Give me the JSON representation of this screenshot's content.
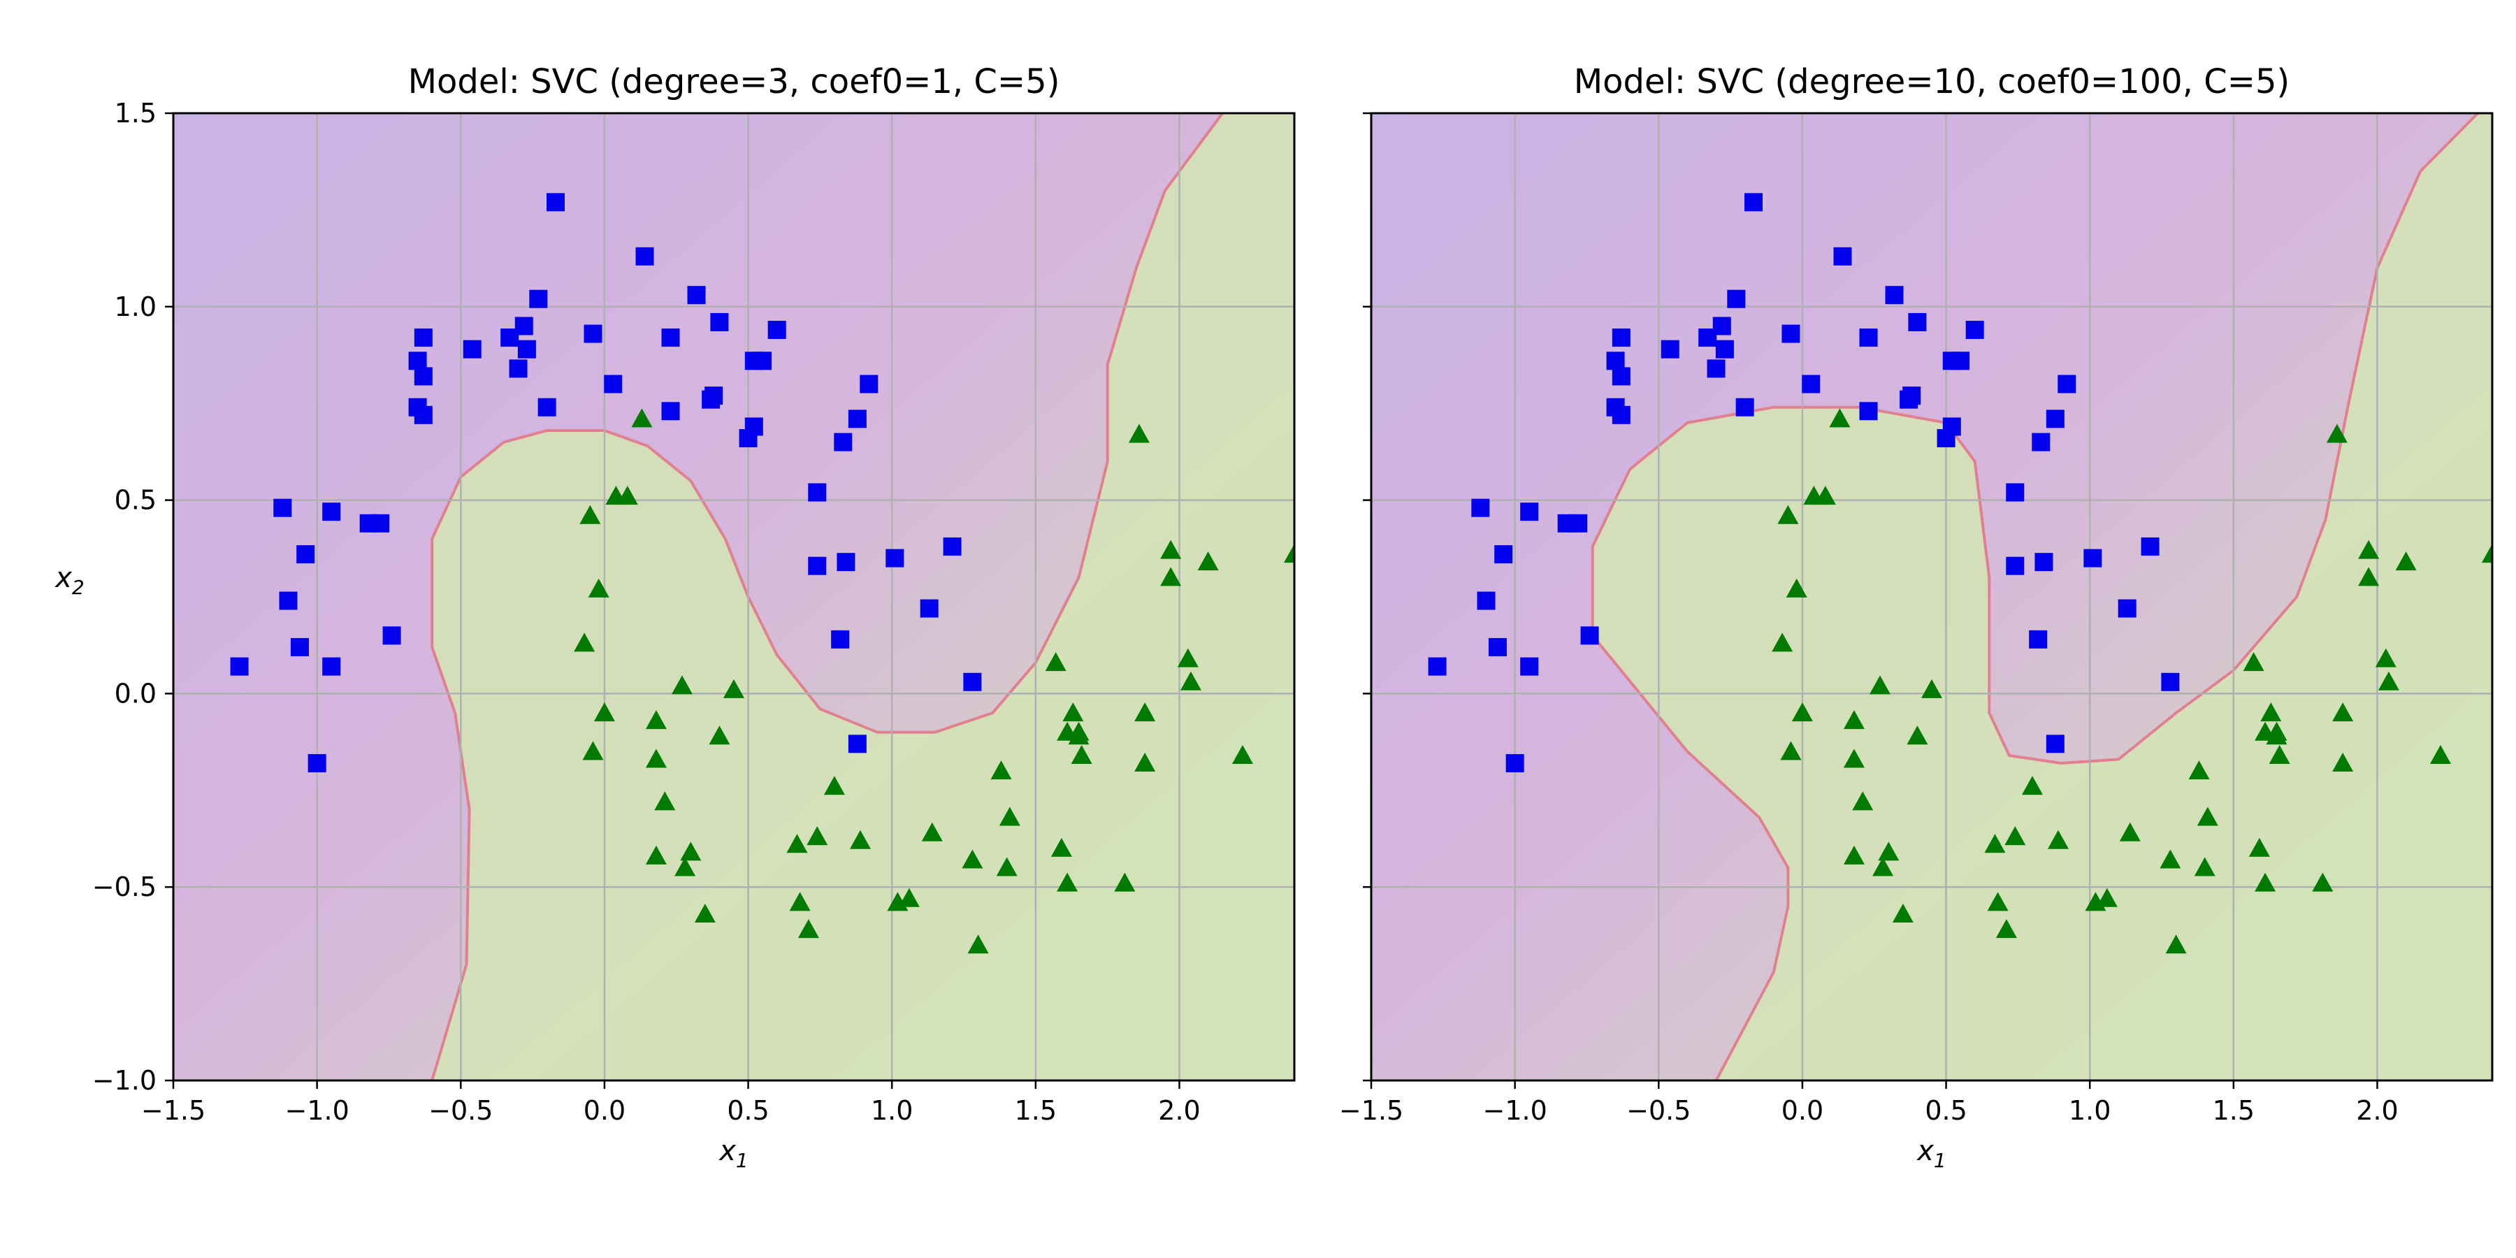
{
  "chart_data": [
    {
      "type": "scatter",
      "title": "Model: SVC  (degree=3, coef0=1, C=5)",
      "xlabel": "x",
      "xlabel_sub": "1",
      "ylabel": "x",
      "ylabel_sub": "2",
      "xlim": [
        -1.5,
        2.4
      ],
      "ylim": [
        -1.0,
        1.5
      ],
      "xticks": [
        -1.5,
        -1.0,
        -0.5,
        0.0,
        0.5,
        1.0,
        1.5,
        2.0
      ],
      "xtick_labels": [
        "−1.5",
        "−1.0",
        "−0.5",
        "0.0",
        "0.5",
        "1.0",
        "1.5",
        "2.0"
      ],
      "yticks": [
        -1.0,
        -0.5,
        0.0,
        0.5,
        1.0,
        1.5
      ],
      "ytick_labels": [
        "−1.0",
        "−0.5",
        "0.0",
        "0.5",
        "1.0",
        "1.5"
      ],
      "grid": true,
      "decision_boundary": {
        "class0_color": "#d8b4dc",
        "class1_color": "#d4e3b6",
        "boundary_color": "#e08090",
        "points": [
          [
            -0.6,
            -1.0
          ],
          [
            -0.48,
            -0.7
          ],
          [
            -0.47,
            -0.3
          ],
          [
            -0.52,
            -0.05
          ],
          [
            -0.6,
            0.12
          ],
          [
            -0.6,
            0.4
          ],
          [
            -0.5,
            0.56
          ],
          [
            -0.35,
            0.65
          ],
          [
            -0.2,
            0.68
          ],
          [
            0.0,
            0.68
          ],
          [
            0.15,
            0.64
          ],
          [
            0.3,
            0.55
          ],
          [
            0.42,
            0.4
          ],
          [
            0.5,
            0.25
          ],
          [
            0.6,
            0.1
          ],
          [
            0.75,
            -0.04
          ],
          [
            0.95,
            -0.1
          ],
          [
            1.15,
            -0.1
          ],
          [
            1.35,
            -0.05
          ],
          [
            1.5,
            0.08
          ],
          [
            1.65,
            0.3
          ],
          [
            1.75,
            0.6
          ],
          [
            1.75,
            0.85
          ],
          [
            1.85,
            1.1
          ],
          [
            1.95,
            1.3
          ],
          [
            2.15,
            1.5
          ]
        ],
        "class1_region_closing": [
          [
            2.4,
            1.5
          ],
          [
            2.4,
            -1.0
          ]
        ]
      },
      "series": [
        {
          "marker": "square",
          "color": "#0000ee",
          "points": [
            [
              -0.17,
              1.27
            ],
            [
              0.14,
              1.13
            ],
            [
              0.32,
              1.03
            ],
            [
              -0.23,
              1.02
            ],
            [
              0.4,
              0.96
            ],
            [
              -0.46,
              0.89
            ],
            [
              -0.33,
              0.92
            ],
            [
              -0.04,
              0.93
            ],
            [
              0.23,
              0.92
            ],
            [
              0.6,
              0.94
            ],
            [
              -0.63,
              0.92
            ],
            [
              -0.28,
              0.95
            ],
            [
              -0.27,
              0.89
            ],
            [
              0.52,
              0.86
            ],
            [
              0.55,
              0.86
            ],
            [
              -0.65,
              0.86
            ],
            [
              -0.63,
              0.82
            ],
            [
              -0.3,
              0.84
            ],
            [
              0.03,
              0.8
            ],
            [
              0.92,
              0.8
            ],
            [
              0.37,
              0.76
            ],
            [
              0.38,
              0.77
            ],
            [
              -0.2,
              0.74
            ],
            [
              0.23,
              0.73
            ],
            [
              -0.65,
              0.74
            ],
            [
              -0.63,
              0.72
            ],
            [
              0.88,
              0.71
            ],
            [
              0.52,
              0.69
            ],
            [
              0.5,
              0.66
            ],
            [
              0.83,
              0.65
            ],
            [
              0.74,
              0.52
            ],
            [
              -1.12,
              0.48
            ],
            [
              -0.95,
              0.47
            ],
            [
              -0.82,
              0.44
            ],
            [
              -0.78,
              0.44
            ],
            [
              1.21,
              0.38
            ],
            [
              -1.04,
              0.36
            ],
            [
              1.01,
              0.35
            ],
            [
              0.84,
              0.34
            ],
            [
              0.74,
              0.33
            ],
            [
              -1.1,
              0.24
            ],
            [
              1.13,
              0.22
            ],
            [
              -0.74,
              0.15
            ],
            [
              0.82,
              0.14
            ],
            [
              -1.06,
              0.12
            ],
            [
              -0.95,
              0.07
            ],
            [
              -1.27,
              0.07
            ],
            [
              1.28,
              0.03
            ],
            [
              0.88,
              -0.13
            ],
            [
              -1.0,
              -0.18
            ]
          ]
        },
        {
          "marker": "triangle",
          "color": "#007a00",
          "points": [
            [
              1.86,
              0.67
            ],
            [
              0.13,
              0.71
            ],
            [
              0.04,
              0.51
            ],
            [
              0.08,
              0.51
            ],
            [
              -0.05,
              0.46
            ],
            [
              1.97,
              0.37
            ],
            [
              2.1,
              0.34
            ],
            [
              2.4,
              0.36
            ],
            [
              1.97,
              0.3
            ],
            [
              -0.02,
              0.27
            ],
            [
              -0.07,
              0.13
            ],
            [
              2.03,
              0.09
            ],
            [
              1.57,
              0.08
            ],
            [
              2.04,
              0.03
            ],
            [
              0.27,
              0.02
            ],
            [
              0.45,
              0.01
            ],
            [
              0.0,
              -0.05
            ],
            [
              1.63,
              -0.05
            ],
            [
              1.88,
              -0.05
            ],
            [
              0.18,
              -0.07
            ],
            [
              1.65,
              -0.1
            ],
            [
              1.61,
              -0.1
            ],
            [
              0.4,
              -0.11
            ],
            [
              1.65,
              -0.11
            ],
            [
              -0.04,
              -0.15
            ],
            [
              1.66,
              -0.16
            ],
            [
              0.18,
              -0.17
            ],
            [
              1.88,
              -0.18
            ],
            [
              2.22,
              -0.16
            ],
            [
              1.38,
              -0.2
            ],
            [
              0.8,
              -0.24
            ],
            [
              0.21,
              -0.28
            ],
            [
              1.41,
              -0.32
            ],
            [
              1.14,
              -0.36
            ],
            [
              0.74,
              -0.37
            ],
            [
              0.89,
              -0.38
            ],
            [
              0.67,
              -0.39
            ],
            [
              0.3,
              -0.41
            ],
            [
              1.59,
              -0.4
            ],
            [
              0.18,
              -0.42
            ],
            [
              1.28,
              -0.43
            ],
            [
              0.28,
              -0.45
            ],
            [
              1.4,
              -0.45
            ],
            [
              1.61,
              -0.49
            ],
            [
              1.81,
              -0.49
            ],
            [
              1.02,
              -0.54
            ],
            [
              1.06,
              -0.53
            ],
            [
              0.68,
              -0.54
            ],
            [
              0.35,
              -0.57
            ],
            [
              0.71,
              -0.61
            ],
            [
              1.3,
              -0.65
            ]
          ]
        }
      ]
    },
    {
      "type": "scatter",
      "title": "Model: SVC  (degree=10, coef0=100, C=5)",
      "xlabel": "x",
      "xlabel_sub": "1",
      "xlim": [
        -1.5,
        2.4
      ],
      "ylim": [
        -1.0,
        1.5
      ],
      "xticks": [
        -1.5,
        -1.0,
        -0.5,
        0.0,
        0.5,
        1.0,
        1.5,
        2.0
      ],
      "xtick_labels": [
        "−1.5",
        "−1.0",
        "−0.5",
        "0.0",
        "0.5",
        "1.0",
        "1.5",
        "2.0"
      ],
      "yticks": [
        -1.0,
        -0.5,
        0.0,
        0.5,
        1.0,
        1.5
      ],
      "grid": true,
      "decision_boundary": {
        "class0_color": "#d8b4dc",
        "class1_color": "#d4e3b6",
        "boundary_color": "#e08090",
        "points": [
          [
            -0.3,
            -1.0
          ],
          [
            -0.1,
            -0.72
          ],
          [
            -0.05,
            -0.55
          ],
          [
            -0.05,
            -0.45
          ],
          [
            -0.15,
            -0.32
          ],
          [
            -0.4,
            -0.15
          ],
          [
            -0.62,
            0.05
          ],
          [
            -0.73,
            0.15
          ],
          [
            -0.73,
            0.38
          ],
          [
            -0.6,
            0.58
          ],
          [
            -0.4,
            0.7
          ],
          [
            -0.1,
            0.74
          ],
          [
            0.2,
            0.74
          ],
          [
            0.5,
            0.7
          ],
          [
            0.6,
            0.6
          ],
          [
            0.65,
            0.3
          ],
          [
            0.65,
            -0.05
          ],
          [
            0.72,
            -0.16
          ],
          [
            0.9,
            -0.18
          ],
          [
            1.1,
            -0.17
          ],
          [
            1.3,
            -0.05
          ],
          [
            1.5,
            0.06
          ],
          [
            1.72,
            0.25
          ],
          [
            1.82,
            0.45
          ],
          [
            1.9,
            0.75
          ],
          [
            2.0,
            1.1
          ],
          [
            2.15,
            1.35
          ],
          [
            2.35,
            1.5
          ]
        ],
        "class1_region_closing": [
          [
            2.4,
            1.5
          ],
          [
            2.4,
            -1.0
          ]
        ]
      },
      "series": [
        {
          "marker": "square",
          "color": "#0000ee",
          "points": [
            [
              -0.17,
              1.27
            ],
            [
              0.14,
              1.13
            ],
            [
              0.32,
              1.03
            ],
            [
              -0.23,
              1.02
            ],
            [
              0.4,
              0.96
            ],
            [
              -0.46,
              0.89
            ],
            [
              -0.33,
              0.92
            ],
            [
              -0.04,
              0.93
            ],
            [
              0.23,
              0.92
            ],
            [
              0.6,
              0.94
            ],
            [
              -0.63,
              0.92
            ],
            [
              -0.28,
              0.95
            ],
            [
              -0.27,
              0.89
            ],
            [
              0.52,
              0.86
            ],
            [
              0.55,
              0.86
            ],
            [
              -0.65,
              0.86
            ],
            [
              -0.63,
              0.82
            ],
            [
              -0.3,
              0.84
            ],
            [
              0.03,
              0.8
            ],
            [
              0.92,
              0.8
            ],
            [
              0.37,
              0.76
            ],
            [
              0.38,
              0.77
            ],
            [
              -0.2,
              0.74
            ],
            [
              0.23,
              0.73
            ],
            [
              -0.65,
              0.74
            ],
            [
              -0.63,
              0.72
            ],
            [
              0.88,
              0.71
            ],
            [
              0.52,
              0.69
            ],
            [
              0.5,
              0.66
            ],
            [
              0.83,
              0.65
            ],
            [
              0.74,
              0.52
            ],
            [
              -1.12,
              0.48
            ],
            [
              -0.95,
              0.47
            ],
            [
              -0.82,
              0.44
            ],
            [
              -0.78,
              0.44
            ],
            [
              1.21,
              0.38
            ],
            [
              -1.04,
              0.36
            ],
            [
              1.01,
              0.35
            ],
            [
              0.84,
              0.34
            ],
            [
              0.74,
              0.33
            ],
            [
              -1.1,
              0.24
            ],
            [
              1.13,
              0.22
            ],
            [
              -0.74,
              0.15
            ],
            [
              0.82,
              0.14
            ],
            [
              -1.06,
              0.12
            ],
            [
              -0.95,
              0.07
            ],
            [
              -1.27,
              0.07
            ],
            [
              1.28,
              0.03
            ],
            [
              0.88,
              -0.13
            ],
            [
              -1.0,
              -0.18
            ]
          ]
        },
        {
          "marker": "triangle",
          "color": "#007a00",
          "points": [
            [
              1.86,
              0.67
            ],
            [
              0.13,
              0.71
            ],
            [
              0.04,
              0.51
            ],
            [
              0.08,
              0.51
            ],
            [
              -0.05,
              0.46
            ],
            [
              1.97,
              0.37
            ],
            [
              2.1,
              0.34
            ],
            [
              2.4,
              0.36
            ],
            [
              1.97,
              0.3
            ],
            [
              -0.02,
              0.27
            ],
            [
              -0.07,
              0.13
            ],
            [
              2.03,
              0.09
            ],
            [
              1.57,
              0.08
            ],
            [
              2.04,
              0.03
            ],
            [
              0.27,
              0.02
            ],
            [
              0.45,
              0.01
            ],
            [
              0.0,
              -0.05
            ],
            [
              1.63,
              -0.05
            ],
            [
              1.88,
              -0.05
            ],
            [
              0.18,
              -0.07
            ],
            [
              1.65,
              -0.1
            ],
            [
              1.61,
              -0.1
            ],
            [
              0.4,
              -0.11
            ],
            [
              1.65,
              -0.11
            ],
            [
              -0.04,
              -0.15
            ],
            [
              1.66,
              -0.16
            ],
            [
              0.18,
              -0.17
            ],
            [
              1.88,
              -0.18
            ],
            [
              2.22,
              -0.16
            ],
            [
              1.38,
              -0.2
            ],
            [
              0.8,
              -0.24
            ],
            [
              0.21,
              -0.28
            ],
            [
              1.41,
              -0.32
            ],
            [
              1.14,
              -0.36
            ],
            [
              0.74,
              -0.37
            ],
            [
              0.89,
              -0.38
            ],
            [
              0.67,
              -0.39
            ],
            [
              0.3,
              -0.41
            ],
            [
              1.59,
              -0.4
            ],
            [
              0.18,
              -0.42
            ],
            [
              1.28,
              -0.43
            ],
            [
              0.28,
              -0.45
            ],
            [
              1.4,
              -0.45
            ],
            [
              1.61,
              -0.49
            ],
            [
              1.81,
              -0.49
            ],
            [
              1.02,
              -0.54
            ],
            [
              1.06,
              -0.53
            ],
            [
              0.68,
              -0.54
            ],
            [
              0.35,
              -0.57
            ],
            [
              0.71,
              -0.61
            ],
            [
              1.3,
              -0.65
            ]
          ]
        }
      ]
    }
  ]
}
